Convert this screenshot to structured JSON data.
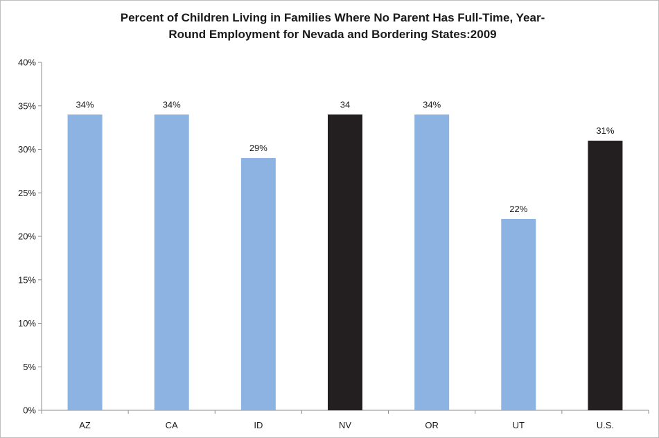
{
  "chart_data": {
    "type": "bar",
    "title_line1": "Percent of Children Living in Families Where No Parent Has Full-Time, Year-",
    "title_line2": "Round Employment for Nevada and Bordering States:2009",
    "categories": [
      "AZ",
      "CA",
      "ID",
      "NV",
      "OR",
      "UT",
      "U.S."
    ],
    "values": [
      34,
      34,
      29,
      34,
      34,
      22,
      31
    ],
    "data_labels": [
      "34%",
      "34%",
      "29%",
      "34",
      "34%",
      "22%",
      "31%"
    ],
    "colors": [
      "#8db3e2",
      "#8db3e2",
      "#8db3e2",
      "#231f20",
      "#8db3e2",
      "#8db3e2",
      "#231f20"
    ],
    "ylim": [
      0,
      40
    ],
    "yticks": [
      0,
      5,
      10,
      15,
      20,
      25,
      30,
      35,
      40
    ],
    "ytick_labels": [
      "0%",
      "5%",
      "10%",
      "15%",
      "20%",
      "25%",
      "30%",
      "35%",
      "40%"
    ],
    "xlabel": "",
    "ylabel": "",
    "grid": false,
    "legend": "none"
  }
}
